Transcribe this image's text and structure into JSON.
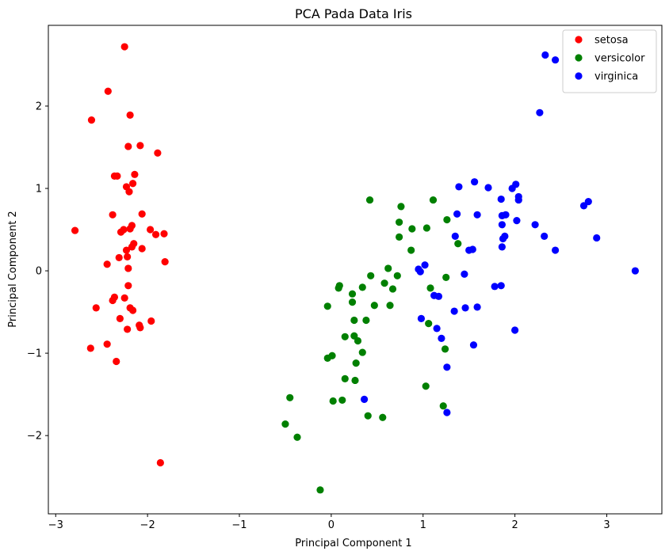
{
  "chart_data": {
    "type": "scatter",
    "title": "PCA Pada Data Iris",
    "xlabel": "Principal Component 1",
    "ylabel": "Principal Component 2",
    "xlim": [
      -3.08,
      3.6
    ],
    "ylim": [
      -2.95,
      2.98
    ],
    "xticks": [
      -3,
      -2,
      -1,
      0,
      1,
      2,
      3
    ],
    "yticks": [
      -2,
      -1,
      0,
      1,
      2
    ],
    "grid": false,
    "legend_position": "top-right",
    "series": [
      {
        "name": "setosa",
        "color": "#ff0000",
        "points": [
          [
            -2.25,
            2.72
          ],
          [
            -2.43,
            2.18
          ],
          [
            -2.61,
            1.83
          ],
          [
            -2.19,
            1.89
          ],
          [
            -2.21,
            1.51
          ],
          [
            -2.08,
            1.52
          ],
          [
            -1.89,
            1.43
          ],
          [
            -2.36,
            1.15
          ],
          [
            -2.33,
            1.15
          ],
          [
            -2.14,
            1.17
          ],
          [
            -2.16,
            1.06
          ],
          [
            -2.23,
            1.02
          ],
          [
            -2.2,
            0.96
          ],
          [
            -2.06,
            0.69
          ],
          [
            -2.38,
            0.68
          ],
          [
            -2.79,
            0.49
          ],
          [
            -2.17,
            0.55
          ],
          [
            -2.19,
            0.51
          ],
          [
            -2.26,
            0.5
          ],
          [
            -2.29,
            0.47
          ],
          [
            -1.97,
            0.5
          ],
          [
            -1.91,
            0.44
          ],
          [
            -1.82,
            0.45
          ],
          [
            -2.15,
            0.33
          ],
          [
            -2.17,
            0.29
          ],
          [
            -2.06,
            0.27
          ],
          [
            -2.23,
            0.25
          ],
          [
            -2.22,
            0.17
          ],
          [
            -2.31,
            0.16
          ],
          [
            -2.44,
            0.08
          ],
          [
            -1.81,
            0.11
          ],
          [
            -2.21,
            0.03
          ],
          [
            -2.21,
            -0.18
          ],
          [
            -2.36,
            -0.32
          ],
          [
            -2.38,
            -0.36
          ],
          [
            -2.25,
            -0.33
          ],
          [
            -2.56,
            -0.45
          ],
          [
            -2.19,
            -0.45
          ],
          [
            -2.16,
            -0.48
          ],
          [
            -2.3,
            -0.58
          ],
          [
            -1.96,
            -0.61
          ],
          [
            -2.09,
            -0.66
          ],
          [
            -2.08,
            -0.69
          ],
          [
            -2.22,
            -0.71
          ],
          [
            -2.44,
            -0.89
          ],
          [
            -2.62,
            -0.94
          ],
          [
            -2.34,
            -1.1
          ],
          [
            -1.86,
            -2.33
          ]
        ]
      },
      {
        "name": "versicolor",
        "color": "#008000",
        "points": [
          [
            0.42,
            0.86
          ],
          [
            1.11,
            0.86
          ],
          [
            0.76,
            0.78
          ],
          [
            1.26,
            0.62
          ],
          [
            0.74,
            0.59
          ],
          [
            0.88,
            0.51
          ],
          [
            1.04,
            0.52
          ],
          [
            0.74,
            0.41
          ],
          [
            1.38,
            0.33
          ],
          [
            0.87,
            0.25
          ],
          [
            0.62,
            0.03
          ],
          [
            0.43,
            -0.06
          ],
          [
            0.72,
            -0.06
          ],
          [
            1.25,
            -0.08
          ],
          [
            0.58,
            -0.15
          ],
          [
            0.09,
            -0.18
          ],
          [
            0.67,
            -0.22
          ],
          [
            0.34,
            -0.2
          ],
          [
            0.08,
            -0.21
          ],
          [
            1.08,
            -0.21
          ],
          [
            0.23,
            -0.28
          ],
          [
            0.23,
            -0.38
          ],
          [
            0.47,
            -0.42
          ],
          [
            0.64,
            -0.42
          ],
          [
            -0.04,
            -0.43
          ],
          [
            0.25,
            -0.6
          ],
          [
            0.38,
            -0.6
          ],
          [
            1.06,
            -0.64
          ],
          [
            0.15,
            -0.8
          ],
          [
            0.25,
            -0.79
          ],
          [
            0.29,
            -0.85
          ],
          [
            0.34,
            -0.99
          ],
          [
            1.24,
            -0.95
          ],
          [
            0.01,
            -1.03
          ],
          [
            -0.04,
            -1.06
          ],
          [
            0.27,
            -1.12
          ],
          [
            0.15,
            -1.31
          ],
          [
            0.26,
            -1.33
          ],
          [
            1.03,
            -1.4
          ],
          [
            -0.45,
            -1.54
          ],
          [
            0.02,
            -1.58
          ],
          [
            0.12,
            -1.57
          ],
          [
            1.22,
            -1.64
          ],
          [
            0.4,
            -1.76
          ],
          [
            0.56,
            -1.78
          ],
          [
            -0.5,
            -1.86
          ],
          [
            -0.37,
            -2.02
          ],
          [
            -0.12,
            -2.66
          ]
        ]
      },
      {
        "name": "virginica",
        "color": "#0000ff",
        "points": [
          [
            2.33,
            2.62
          ],
          [
            2.44,
            2.56
          ],
          [
            2.27,
            1.92
          ],
          [
            1.56,
            1.08
          ],
          [
            2.01,
            1.05
          ],
          [
            1.39,
            1.02
          ],
          [
            1.71,
            1.01
          ],
          [
            1.97,
            1.0
          ],
          [
            1.85,
            0.87
          ],
          [
            2.04,
            0.9
          ],
          [
            2.04,
            0.86
          ],
          [
            2.8,
            0.84
          ],
          [
            2.75,
            0.79
          ],
          [
            2.22,
            0.56
          ],
          [
            1.37,
            0.69
          ],
          [
            1.59,
            0.68
          ],
          [
            1.86,
            0.67
          ],
          [
            1.9,
            0.68
          ],
          [
            2.02,
            0.61
          ],
          [
            1.86,
            0.56
          ],
          [
            1.35,
            0.42
          ],
          [
            1.89,
            0.42
          ],
          [
            1.87,
            0.39
          ],
          [
            2.32,
            0.42
          ],
          [
            2.89,
            0.4
          ],
          [
            1.86,
            0.29
          ],
          [
            1.5,
            0.25
          ],
          [
            1.54,
            0.26
          ],
          [
            2.44,
            0.25
          ],
          [
            3.31,
            0.0
          ],
          [
            1.02,
            0.07
          ],
          [
            0.95,
            0.02
          ],
          [
            0.97,
            -0.01
          ],
          [
            1.45,
            -0.04
          ],
          [
            1.78,
            -0.19
          ],
          [
            1.85,
            -0.18
          ],
          [
            1.12,
            -0.3
          ],
          [
            1.17,
            -0.31
          ],
          [
            1.46,
            -0.45
          ],
          [
            1.59,
            -0.44
          ],
          [
            1.34,
            -0.49
          ],
          [
            0.98,
            -0.58
          ],
          [
            1.15,
            -0.7
          ],
          [
            2.0,
            -0.72
          ],
          [
            1.2,
            -0.82
          ],
          [
            1.55,
            -0.9
          ],
          [
            1.26,
            -1.17
          ],
          [
            0.36,
            -1.56
          ],
          [
            1.26,
            -1.72
          ]
        ]
      }
    ]
  }
}
